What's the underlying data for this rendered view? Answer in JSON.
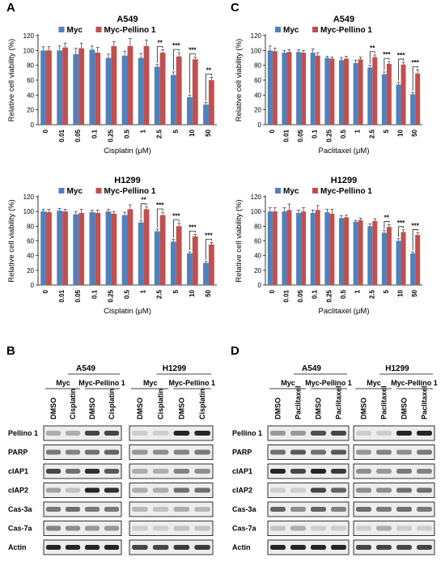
{
  "figure": {
    "colors": {
      "myc": "#4f81bd",
      "pellino": "#c0504d",
      "blot_bg": "#ededed",
      "band": "#1a1a1a"
    }
  },
  "panels": {
    "A": {
      "letter": "A"
    },
    "B": {
      "letter": "B"
    },
    "C": {
      "letter": "C"
    },
    "D": {
      "letter": "D"
    }
  },
  "chart_data": [
    {
      "id": "A_top",
      "type": "bar",
      "title": "A549",
      "xlabel": "Cisplatin (μM)",
      "ylabel": "Relative cell viability (%)",
      "ylim": [
        0,
        120
      ],
      "yticks": [
        0,
        20,
        40,
        60,
        80,
        100,
        120
      ],
      "categories": [
        "0",
        "0.01",
        "0.05",
        "0.1",
        "0.25",
        "0.5",
        "1",
        "2.5",
        "5",
        "10",
        "50"
      ],
      "series": [
        {
          "name": "Myc",
          "values": [
            100,
            100,
            95,
            101,
            90,
            93,
            90,
            78,
            67,
            37,
            27
          ],
          "errors": [
            5,
            6,
            8,
            5,
            5,
            6,
            6,
            3,
            4,
            3,
            3
          ]
        },
        {
          "name": "Myc-Pellino 1",
          "values": [
            100,
            104,
            103,
            97,
            106,
            106,
            106,
            97,
            92,
            88,
            60
          ],
          "errors": [
            5,
            6,
            7,
            7,
            6,
            10,
            8,
            4,
            5,
            3,
            4
          ]
        }
      ],
      "significance": [
        {
          "category": "2.5",
          "label": "**"
        },
        {
          "category": "5",
          "label": "***"
        },
        {
          "category": "10",
          "label": "***"
        },
        {
          "category": "50",
          "label": "**"
        }
      ],
      "legend_position": "top"
    },
    {
      "id": "A_bottom",
      "type": "bar",
      "title": "H1299",
      "xlabel": "Cisplatin (μM)",
      "ylabel": "Relative cell viability (%)",
      "ylim": [
        0,
        120
      ],
      "yticks": [
        0,
        20,
        40,
        60,
        80,
        100,
        120
      ],
      "categories": [
        "0",
        "0.01",
        "0.05",
        "0.1",
        "0.25",
        "0.5",
        "1",
        "2.5",
        "5",
        "10",
        "50"
      ],
      "series": [
        {
          "name": "Myc",
          "values": [
            100,
            101,
            96,
            99,
            100,
            95,
            85,
            73,
            59,
            43,
            30
          ],
          "errors": [
            3,
            3,
            4,
            3,
            3,
            4,
            3,
            3,
            3,
            2,
            2
          ]
        },
        {
          "name": "Myc-Pellino 1",
          "values": [
            99,
            100,
            98,
            98,
            97,
            103,
            103,
            95,
            80,
            66,
            55
          ],
          "errors": [
            4,
            3,
            5,
            4,
            3,
            6,
            3,
            4,
            4,
            3,
            3
          ]
        }
      ],
      "significance": [
        {
          "category": "1",
          "label": "**"
        },
        {
          "category": "2.5",
          "label": "***"
        },
        {
          "category": "5",
          "label": "***"
        },
        {
          "category": "10",
          "label": "***"
        },
        {
          "category": "50",
          "label": "***"
        }
      ],
      "legend_position": "top"
    },
    {
      "id": "C_top",
      "type": "bar",
      "title": "A549",
      "xlabel": "Paclitaxel (μM)",
      "ylabel": "Relative cell viability (%)",
      "ylim": [
        0,
        120
      ],
      "yticks": [
        0,
        20,
        40,
        60,
        80,
        100,
        120
      ],
      "categories": [
        "0",
        "0.01",
        "0.05",
        "0.1",
        "0.25",
        "0.5",
        "1",
        "2.5",
        "5",
        "10",
        "50"
      ],
      "series": [
        {
          "name": "Myc",
          "values": [
            100,
            97,
            98,
            97,
            90,
            87,
            83,
            77,
            68,
            54,
            41
          ],
          "errors": [
            6,
            3,
            3,
            5,
            2,
            3,
            4,
            3,
            3,
            3,
            2
          ]
        },
        {
          "name": "Myc-Pellino 1",
          "values": [
            99,
            98,
            97,
            93,
            89,
            89,
            88,
            91,
            82,
            81,
            69
          ],
          "errors": [
            4,
            3,
            3,
            4,
            2,
            3,
            3,
            3,
            3,
            3,
            5
          ]
        }
      ],
      "significance": [
        {
          "category": "2.5",
          "label": "**"
        },
        {
          "category": "5",
          "label": "***"
        },
        {
          "category": "10",
          "label": "***"
        },
        {
          "category": "50",
          "label": "***"
        }
      ],
      "legend_position": "top"
    },
    {
      "id": "C_bottom",
      "type": "bar",
      "title": "H1299",
      "xlabel": "Paclitaxel (μM)",
      "ylabel": "Relative cell viability (%)",
      "ylim": [
        0,
        120
      ],
      "yticks": [
        0,
        20,
        40,
        60,
        80,
        100,
        120
      ],
      "categories": [
        "0",
        "0.01",
        "0.05",
        "0.1",
        "0.25",
        "0.5",
        "1",
        "2.5",
        "5",
        "10",
        "50"
      ],
      "series": [
        {
          "name": "Myc",
          "values": [
            100,
            100,
            98,
            98,
            99,
            91,
            86,
            80,
            71,
            60,
            43
          ],
          "errors": [
            5,
            5,
            4,
            4,
            4,
            3,
            2,
            3,
            3,
            3,
            2
          ]
        },
        {
          "name": "Myc-Pellino 1",
          "values": [
            100,
            102,
            100,
            102,
            97,
            92,
            88,
            87,
            79,
            72,
            68
          ],
          "errors": [
            5,
            8,
            5,
            6,
            6,
            3,
            3,
            3,
            3,
            3,
            3
          ]
        }
      ],
      "significance": [
        {
          "category": "5",
          "label": "**"
        },
        {
          "category": "10",
          "label": "***"
        },
        {
          "category": "50",
          "label": "***"
        }
      ],
      "legend_position": "top"
    }
  ],
  "blots": [
    {
      "id": "B",
      "lanes": [
        "DMSO",
        "Cisplatin",
        "DMSO",
        "Cisplatin"
      ],
      "cell_lines": [
        {
          "name": "A549",
          "groups": [
            "Myc",
            "Myc-Pellino 1"
          ]
        },
        {
          "name": "H1299",
          "groups": [
            "Myc",
            "Myc-Pellino 1"
          ]
        }
      ],
      "proteins": [
        "Pellino 1",
        "PARP",
        "cIAP1",
        "cIAP2",
        "Cas-3a",
        "Cas-7a",
        "Actin"
      ],
      "bands": [
        [
          [
            0.3,
            0.3,
            0.8,
            0.8
          ],
          [
            0.15,
            0.15,
            0.95,
            0.95
          ]
        ],
        [
          [
            0.55,
            0.5,
            0.6,
            0.65
          ],
          [
            0.4,
            0.45,
            0.5,
            0.55
          ]
        ],
        [
          [
            0.8,
            0.6,
            0.9,
            0.7
          ],
          [
            0.3,
            0.3,
            0.5,
            0.45
          ]
        ],
        [
          [
            0.35,
            0.2,
            0.95,
            0.9
          ],
          [
            0.3,
            0.3,
            0.6,
            0.6
          ]
        ],
        [
          [
            0.55,
            0.6,
            0.55,
            0.55
          ],
          [
            0.25,
            0.2,
            0.3,
            0.25
          ]
        ],
        [
          [
            0.5,
            0.45,
            0.4,
            0.4
          ],
          [
            0.15,
            0.15,
            0.2,
            0.2
          ]
        ],
        [
          [
            0.95,
            0.95,
            0.95,
            0.95
          ],
          [
            0.8,
            0.8,
            0.85,
            0.85
          ]
        ]
      ]
    },
    {
      "id": "D",
      "lanes": [
        "DMSO",
        "Paclitaxel",
        "DMSO",
        "Paclitaxel"
      ],
      "cell_lines": [
        {
          "name": "A549",
          "groups": [
            "Myc",
            "Myc-Pellino 1"
          ]
        },
        {
          "name": "H1299",
          "groups": [
            "Myc",
            "Myc-Pellino 1"
          ]
        }
      ],
      "proteins": [
        "Pellino 1",
        "PARP",
        "cIAP1",
        "cIAP2",
        "Cas-3a",
        "Cas-7a",
        "Actin"
      ],
      "bands": [
        [
          [
            0.4,
            0.4,
            0.75,
            0.8
          ],
          [
            0.15,
            0.15,
            0.95,
            0.95
          ]
        ],
        [
          [
            0.6,
            0.7,
            0.6,
            0.7
          ],
          [
            0.4,
            0.5,
            0.45,
            0.55
          ]
        ],
        [
          [
            0.95,
            0.8,
            0.95,
            0.85
          ],
          [
            0.45,
            0.4,
            0.55,
            0.5
          ]
        ],
        [
          [
            0.15,
            0.15,
            0.8,
            0.65
          ],
          [
            0.45,
            0.45,
            0.6,
            0.6
          ]
        ],
        [
          [
            0.65,
            0.45,
            0.65,
            0.5
          ],
          [
            0.6,
            0.55,
            0.6,
            0.55
          ]
        ],
        [
          [
            0.2,
            0.3,
            0.15,
            0.15
          ],
          [
            0.15,
            0.3,
            0.15,
            0.15
          ]
        ],
        [
          [
            0.95,
            0.95,
            0.95,
            0.95
          ],
          [
            0.8,
            0.8,
            0.8,
            0.8
          ]
        ]
      ]
    }
  ]
}
